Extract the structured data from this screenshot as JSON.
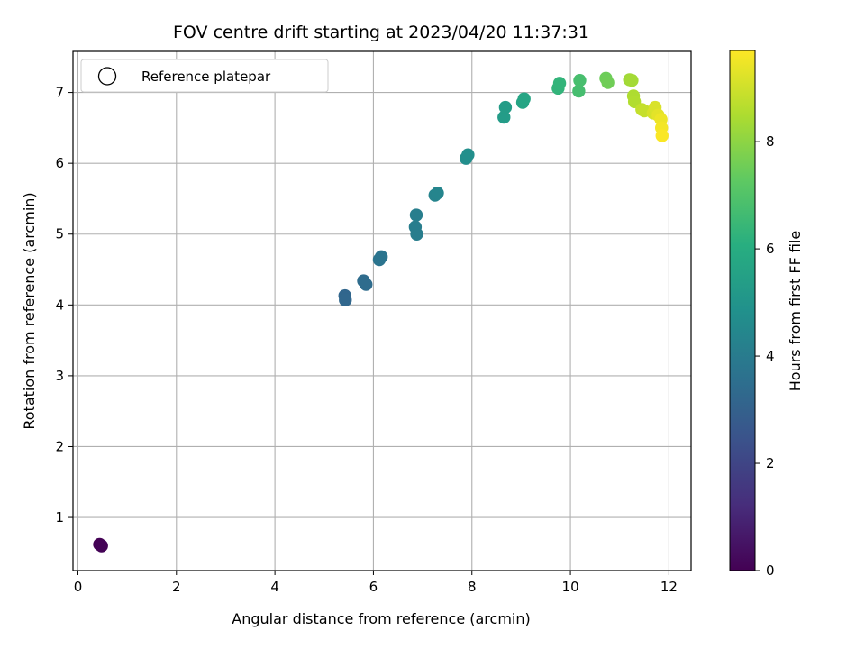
{
  "chart_data": {
    "type": "scatter",
    "title": "FOV centre drift starting at 2023/04/20 11:37:31",
    "xlabel": "Angular distance from reference (arcmin)",
    "ylabel": "Rotation from reference (arcmin)",
    "xlim": [
      -0.1,
      12.45
    ],
    "ylim": [
      0.25,
      7.58
    ],
    "xticks": [
      0,
      2,
      4,
      6,
      8,
      10,
      12
    ],
    "yticks": [
      1,
      2,
      3,
      4,
      5,
      6,
      7
    ],
    "grid": true,
    "legend": {
      "location": "upper left",
      "entries": [
        {
          "label": "Reference platepar",
          "marker": "open-circle"
        }
      ]
    },
    "colorbar": {
      "label": "Hours from first FF file",
      "colormap": "viridis",
      "range": [
        0,
        9.7
      ],
      "ticks": [
        0,
        2,
        4,
        6,
        8
      ]
    },
    "points": [
      {
        "x": 0.44,
        "y": 0.62,
        "hours": 0.0
      },
      {
        "x": 0.48,
        "y": 0.6,
        "hours": 0.05
      },
      {
        "x": 5.42,
        "y": 4.13,
        "hours": 3.2
      },
      {
        "x": 5.43,
        "y": 4.07,
        "hours": 3.22
      },
      {
        "x": 5.8,
        "y": 4.34,
        "hours": 3.4
      },
      {
        "x": 5.85,
        "y": 4.29,
        "hours": 3.42
      },
      {
        "x": 6.12,
        "y": 4.64,
        "hours": 3.7
      },
      {
        "x": 6.16,
        "y": 4.68,
        "hours": 3.72
      },
      {
        "x": 6.85,
        "y": 5.1,
        "hours": 4.05
      },
      {
        "x": 6.88,
        "y": 5.0,
        "hours": 4.08
      },
      {
        "x": 6.87,
        "y": 5.27,
        "hours": 4.1
      },
      {
        "x": 7.25,
        "y": 5.55,
        "hours": 4.35
      },
      {
        "x": 7.3,
        "y": 5.58,
        "hours": 4.37
      },
      {
        "x": 7.88,
        "y": 6.07,
        "hours": 4.75
      },
      {
        "x": 7.92,
        "y": 6.12,
        "hours": 4.77
      },
      {
        "x": 8.65,
        "y": 6.65,
        "hours": 5.3
      },
      {
        "x": 8.68,
        "y": 6.79,
        "hours": 5.33
      },
      {
        "x": 9.03,
        "y": 6.86,
        "hours": 5.65
      },
      {
        "x": 9.06,
        "y": 6.91,
        "hours": 5.67
      },
      {
        "x": 9.75,
        "y": 7.06,
        "hours": 6.3
      },
      {
        "x": 9.78,
        "y": 7.13,
        "hours": 6.32
      },
      {
        "x": 10.17,
        "y": 7.02,
        "hours": 6.75
      },
      {
        "x": 10.19,
        "y": 7.17,
        "hours": 6.78
      },
      {
        "x": 10.72,
        "y": 7.2,
        "hours": 7.5
      },
      {
        "x": 10.76,
        "y": 7.14,
        "hours": 7.55
      },
      {
        "x": 11.2,
        "y": 7.18,
        "hours": 8.3
      },
      {
        "x": 11.25,
        "y": 7.17,
        "hours": 8.35
      },
      {
        "x": 11.28,
        "y": 6.95,
        "hours": 8.5
      },
      {
        "x": 11.3,
        "y": 6.87,
        "hours": 8.55
      },
      {
        "x": 11.45,
        "y": 6.76,
        "hours": 8.8
      },
      {
        "x": 11.5,
        "y": 6.74,
        "hours": 8.85
      },
      {
        "x": 11.68,
        "y": 6.71,
        "hours": 9.1
      },
      {
        "x": 11.72,
        "y": 6.79,
        "hours": 9.15
      },
      {
        "x": 11.78,
        "y": 6.68,
        "hours": 9.3
      },
      {
        "x": 11.84,
        "y": 6.62,
        "hours": 9.45
      },
      {
        "x": 11.85,
        "y": 6.5,
        "hours": 9.55
      },
      {
        "x": 11.86,
        "y": 6.39,
        "hours": 9.65
      }
    ]
  }
}
